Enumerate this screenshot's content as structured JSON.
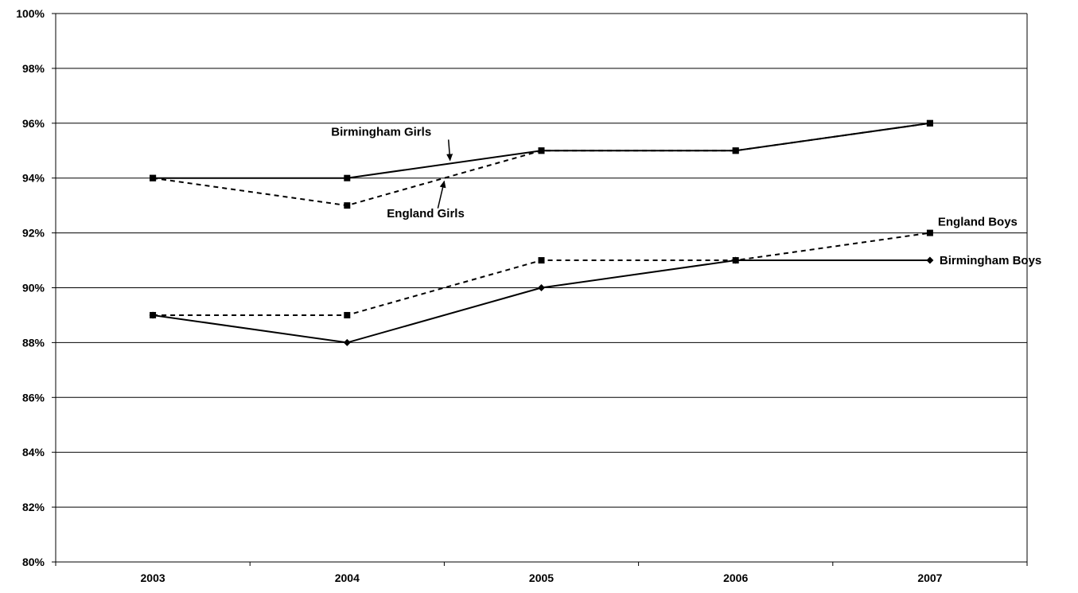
{
  "chart_data": {
    "type": "line",
    "title": "",
    "xlabel": "",
    "ylabel": "",
    "categories": [
      "2003",
      "2004",
      "2005",
      "2006",
      "2007"
    ],
    "ylim": [
      80,
      100
    ],
    "y_ticks": [
      80,
      82,
      84,
      86,
      88,
      90,
      92,
      94,
      96,
      98,
      100
    ],
    "y_tick_labels": [
      "80%",
      "82%",
      "84%",
      "86%",
      "88%",
      "90%",
      "92%",
      "94%",
      "96%",
      "98%",
      "100%"
    ],
    "grid": "horizontal",
    "legend": "none",
    "series": [
      {
        "name": "Birmingham Girls",
        "values": [
          94,
          94,
          95,
          95,
          96
        ],
        "line_style": "solid",
        "marker": "square",
        "color": "#000000"
      },
      {
        "name": "England Girls",
        "values": [
          94,
          93,
          95,
          95,
          96
        ],
        "line_style": "dashed",
        "marker": "square",
        "color": "#000000"
      },
      {
        "name": "England Boys",
        "values": [
          89,
          89,
          91,
          91,
          92
        ],
        "line_style": "dashed",
        "marker": "square",
        "color": "#000000"
      },
      {
        "name": "Birmingham Boys",
        "values": [
          89,
          88,
          90,
          91,
          91
        ],
        "line_style": "solid",
        "marker": "diamond",
        "color": "#000000"
      }
    ]
  }
}
